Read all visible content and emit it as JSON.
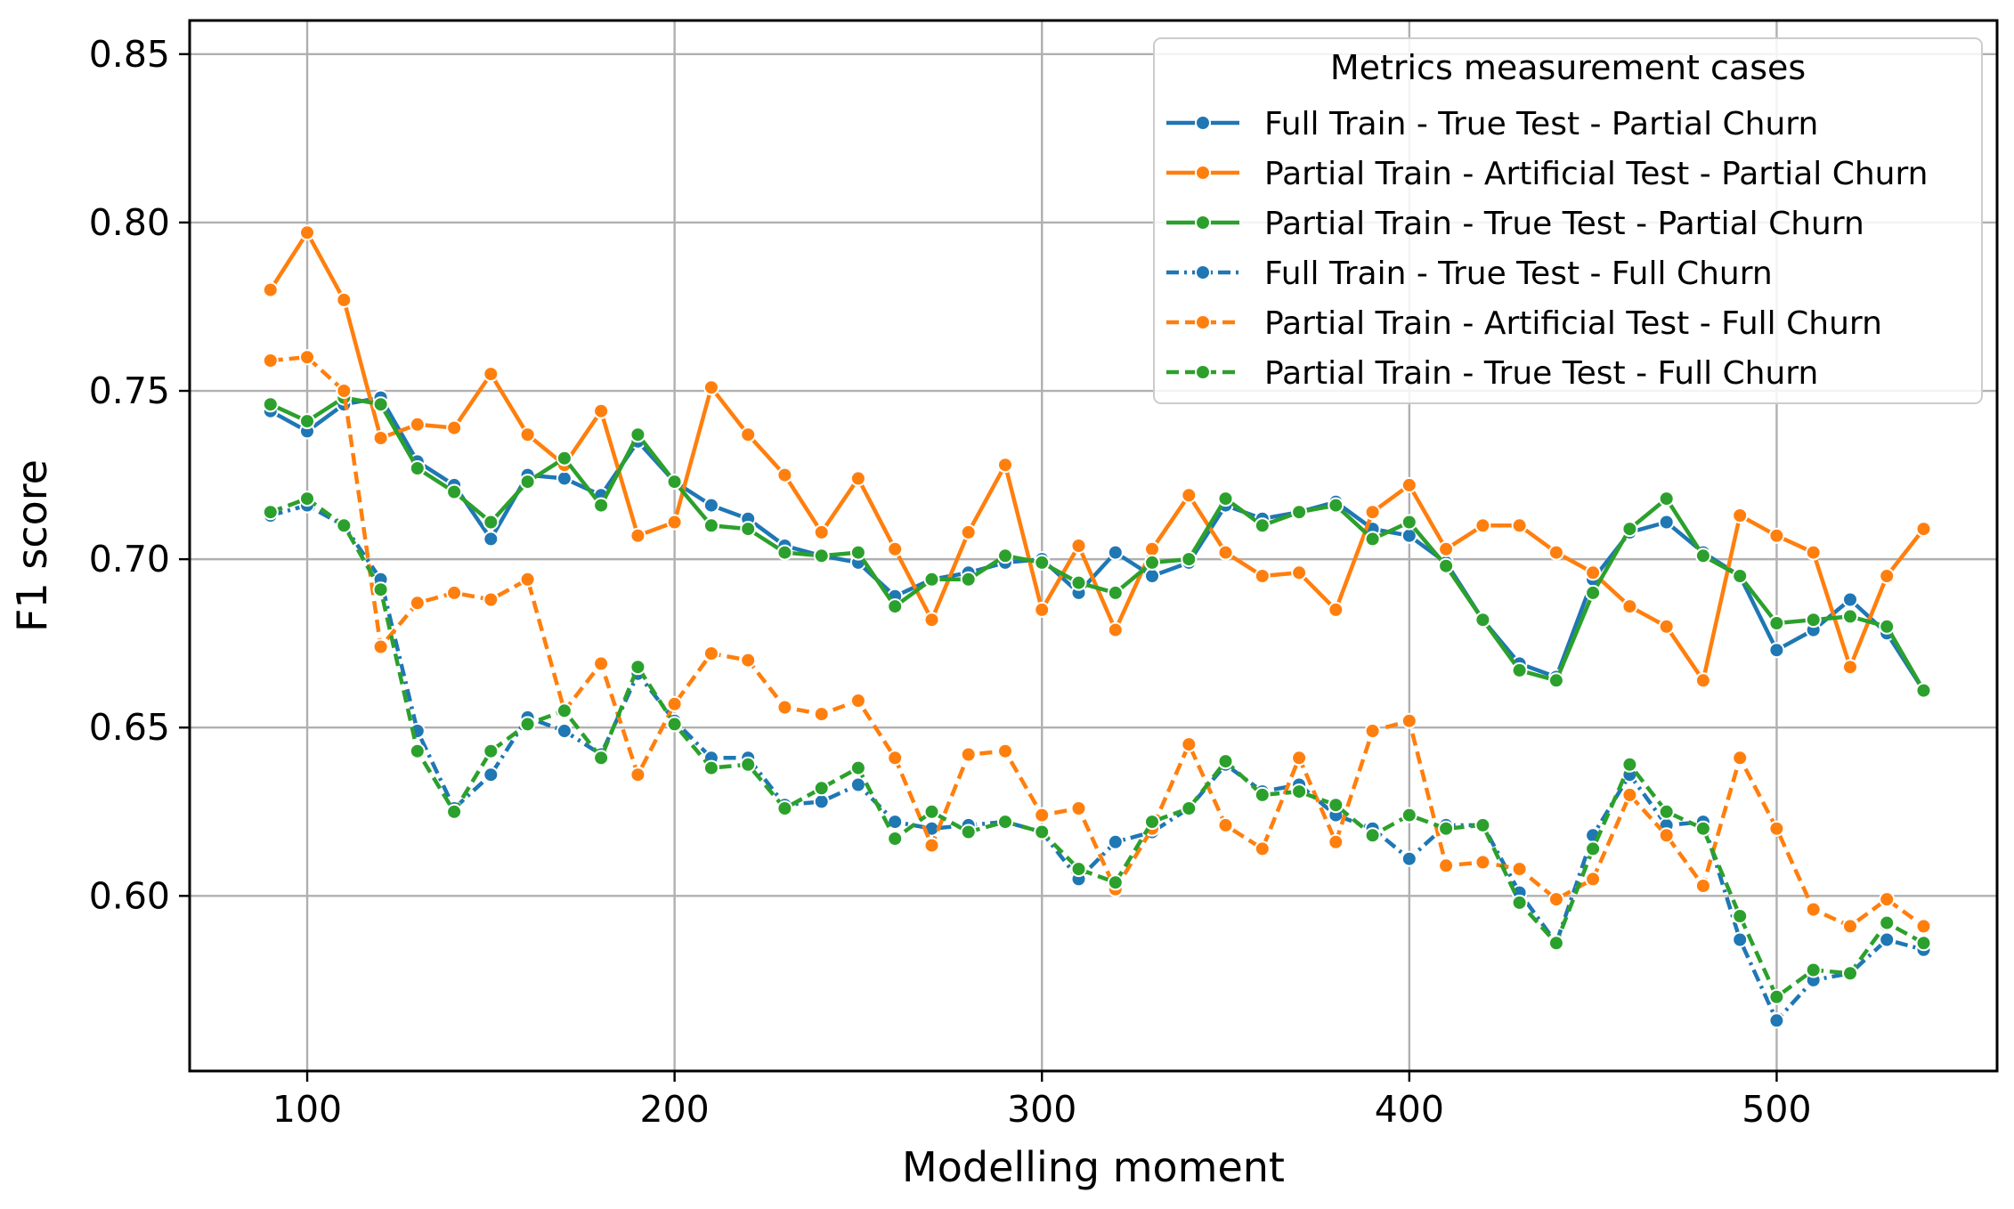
{
  "chart_data": {
    "type": "line",
    "title": "",
    "xlabel": "Modelling moment",
    "ylabel": "F1 score",
    "xlim": [
      68,
      560
    ],
    "ylim": [
      0.548,
      0.86
    ],
    "xticks": [
      100,
      200,
      300,
      400,
      500
    ],
    "yticks": [
      0.6,
      0.65,
      0.7,
      0.75,
      0.8,
      0.85
    ],
    "xtick_labels": [
      "100",
      "200",
      "300",
      "400",
      "500"
    ],
    "ytick_labels": [
      "0.60",
      "0.65",
      "0.70",
      "0.75",
      "0.80",
      "0.85"
    ],
    "grid": true,
    "legend": {
      "title": "Metrics measurement cases",
      "position": "top-right"
    },
    "x": [
      90,
      100,
      110,
      120,
      130,
      140,
      150,
      160,
      170,
      180,
      190,
      200,
      210,
      220,
      230,
      240,
      250,
      260,
      270,
      280,
      290,
      300,
      310,
      320,
      330,
      340,
      350,
      360,
      370,
      380,
      390,
      400,
      410,
      420,
      430,
      440,
      450,
      460,
      470,
      480,
      490,
      500,
      510,
      520,
      530,
      540
    ],
    "series": [
      {
        "name": "Full Train - True Test - Partial Churn",
        "color": "#1f77b4",
        "dash": "solid",
        "values": [
          0.744,
          0.738,
          0.746,
          0.748,
          0.729,
          0.722,
          0.706,
          0.725,
          0.724,
          0.719,
          0.735,
          0.723,
          0.716,
          0.712,
          0.704,
          0.701,
          0.699,
          0.689,
          0.694,
          0.696,
          0.699,
          0.7,
          0.69,
          0.702,
          0.695,
          0.699,
          0.716,
          0.712,
          0.714,
          0.717,
          0.709,
          0.707,
          0.699,
          0.682,
          0.669,
          0.665,
          0.694,
          0.708,
          0.711,
          0.702,
          0.695,
          0.673,
          0.679,
          0.688,
          0.678,
          0.661
        ]
      },
      {
        "name": "Partial Train - Artificial Test - Partial Churn",
        "color": "#ff7f0e",
        "dash": "solid",
        "values": [
          0.78,
          0.797,
          0.777,
          0.736,
          0.74,
          0.739,
          0.755,
          0.737,
          0.728,
          0.744,
          0.707,
          0.711,
          0.751,
          0.737,
          0.725,
          0.708,
          0.724,
          0.703,
          0.682,
          0.708,
          0.728,
          0.685,
          0.704,
          0.679,
          0.703,
          0.719,
          0.702,
          0.695,
          0.696,
          0.685,
          0.714,
          0.722,
          0.703,
          0.71,
          0.71,
          0.702,
          0.696,
          0.686,
          0.68,
          0.664,
          0.713,
          0.707,
          0.702,
          0.668,
          0.695,
          0.709
        ]
      },
      {
        "name": "Partial Train - True Test - Partial Churn",
        "color": "#2ca02c",
        "dash": "solid",
        "values": [
          0.746,
          0.741,
          0.748,
          0.746,
          0.727,
          0.72,
          0.711,
          0.723,
          0.73,
          0.716,
          0.737,
          0.723,
          0.71,
          0.709,
          0.702,
          0.701,
          0.702,
          0.686,
          0.694,
          0.694,
          0.701,
          0.699,
          0.693,
          0.69,
          0.699,
          0.7,
          0.718,
          0.71,
          0.714,
          0.716,
          0.706,
          0.711,
          0.698,
          0.682,
          0.667,
          0.664,
          0.69,
          0.709,
          0.718,
          0.701,
          0.695,
          0.681,
          0.682,
          0.683,
          0.68,
          0.661
        ]
      },
      {
        "name": "Full Train - True Test - Full Churn",
        "color": "#1f77b4",
        "dash": "dashdot",
        "values": [
          0.713,
          0.716,
          0.71,
          0.694,
          0.649,
          0.626,
          0.636,
          0.653,
          0.649,
          0.642,
          0.666,
          0.652,
          0.641,
          0.641,
          0.627,
          0.628,
          0.633,
          0.622,
          0.62,
          0.621,
          0.622,
          0.619,
          0.605,
          0.616,
          0.619,
          0.626,
          0.639,
          0.631,
          0.633,
          0.624,
          0.62,
          0.611,
          0.621,
          0.621,
          0.601,
          0.586,
          0.618,
          0.636,
          0.621,
          0.622,
          0.587,
          0.563,
          0.575,
          0.577,
          0.587,
          0.584
        ]
      },
      {
        "name": "Partial Train - Artificial Test - Full Churn",
        "color": "#ff7f0e",
        "dash": "dashed",
        "values": [
          0.759,
          0.76,
          0.75,
          0.674,
          0.687,
          0.69,
          0.688,
          0.694,
          0.655,
          0.669,
          0.636,
          0.657,
          0.672,
          0.67,
          0.656,
          0.654,
          0.658,
          0.641,
          0.615,
          0.642,
          0.643,
          0.624,
          0.626,
          0.602,
          0.62,
          0.645,
          0.621,
          0.614,
          0.641,
          0.616,
          0.649,
          0.652,
          0.609,
          0.61,
          0.608,
          0.599,
          0.605,
          0.63,
          0.618,
          0.603,
          0.641,
          0.62,
          0.596,
          0.591,
          0.599,
          0.591
        ]
      },
      {
        "name": "Partial Train - True Test - Full Churn",
        "color": "#2ca02c",
        "dash": "dashed",
        "values": [
          0.714,
          0.718,
          0.71,
          0.691,
          0.643,
          0.625,
          0.643,
          0.651,
          0.655,
          0.641,
          0.668,
          0.651,
          0.638,
          0.639,
          0.626,
          0.632,
          0.638,
          0.617,
          0.625,
          0.619,
          0.622,
          0.619,
          0.608,
          0.604,
          0.622,
          0.626,
          0.64,
          0.63,
          0.631,
          0.627,
          0.618,
          0.624,
          0.62,
          0.621,
          0.598,
          0.586,
          0.614,
          0.639,
          0.625,
          0.62,
          0.594,
          0.57,
          0.578,
          0.577,
          0.592,
          0.586
        ]
      }
    ]
  }
}
